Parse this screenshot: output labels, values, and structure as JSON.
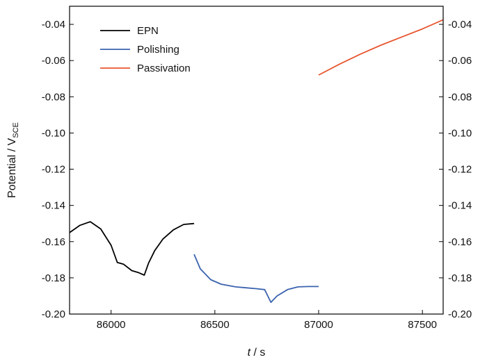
{
  "chart_data": {
    "type": "line",
    "xlabel_italic": "t",
    "xlabel_rest": " / s",
    "ylabel_main": "Potential / V",
    "ylabel_sub": "SCE",
    "xlim": [
      85800,
      87600
    ],
    "ylim": [
      -0.2,
      -0.03
    ],
    "x_ticks": [
      86000,
      86500,
      87000,
      87500
    ],
    "x_tick_labels": [
      "86000",
      "86500",
      "87000",
      "87500"
    ],
    "y_ticks": [
      -0.04,
      -0.06,
      -0.08,
      -0.1,
      -0.12,
      -0.14,
      -0.16,
      -0.18,
      -0.2
    ],
    "y_tick_labels": [
      "-0.04",
      "-0.06",
      "-0.08",
      "-0.10",
      "-0.12",
      "-0.14",
      "-0.16",
      "-0.18",
      "-0.20"
    ],
    "legend_position": "top-left",
    "grid": false,
    "series": [
      {
        "name": "EPN",
        "color": "#000000",
        "x": [
          85800,
          85850,
          85900,
          85950,
          86000,
          86030,
          86060,
          86100,
          86130,
          86160,
          86180,
          86210,
          86250,
          86300,
          86350,
          86400
        ],
        "y": [
          -0.155,
          -0.151,
          -0.149,
          -0.153,
          -0.162,
          -0.1715,
          -0.1725,
          -0.176,
          -0.177,
          -0.1785,
          -0.172,
          -0.165,
          -0.1585,
          -0.1535,
          -0.1505,
          -0.15
        ]
      },
      {
        "name": "Polishing",
        "color": "#3a62ae",
        "x": [
          86400,
          86430,
          86480,
          86530,
          86600,
          86650,
          86700,
          86740,
          86770,
          86800,
          86850,
          86900,
          86950,
          87000
        ],
        "y": [
          -0.167,
          -0.175,
          -0.181,
          -0.1835,
          -0.185,
          -0.1855,
          -0.186,
          -0.1865,
          -0.1935,
          -0.19,
          -0.1865,
          -0.185,
          -0.1848,
          -0.1848
        ]
      },
      {
        "name": "Passivation",
        "color": "#e8552e",
        "x": [
          87000,
          87100,
          87200,
          87300,
          87400,
          87500,
          87600
        ],
        "y": [
          -0.068,
          -0.062,
          -0.0565,
          -0.0515,
          -0.047,
          -0.0425,
          -0.0375
        ]
      }
    ]
  }
}
